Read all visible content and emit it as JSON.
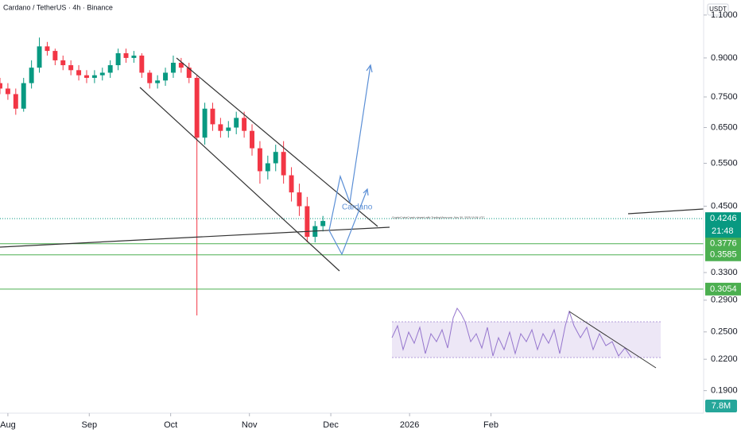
{
  "chart_data": {
    "type": "candlestick",
    "title": "Cardano / TetherUS · 4h · Binance",
    "currency": "USDT",
    "x": [
      -3,
      0,
      3,
      6,
      9,
      12,
      15,
      18,
      21,
      24,
      27,
      30,
      33,
      36,
      39,
      42,
      45,
      48,
      51,
      54,
      57,
      60,
      63,
      66,
      69,
      72,
      75,
      78,
      81,
      84,
      87,
      90,
      93,
      96,
      99,
      102,
      105,
      108,
      111,
      114,
      117,
      120
    ],
    "open": [
      0.8,
      0.78,
      0.76,
      0.71,
      0.8,
      0.86,
      0.95,
      0.93,
      0.89,
      0.87,
      0.85,
      0.83,
      0.82,
      0.83,
      0.84,
      0.87,
      0.92,
      0.9,
      0.91,
      0.84,
      0.8,
      0.81,
      0.84,
      0.88,
      0.86,
      0.82,
      0.62,
      0.71,
      0.66,
      0.64,
      0.65,
      0.68,
      0.64,
      0.59,
      0.53,
      0.55,
      0.58,
      0.52,
      0.48,
      0.45,
      0.39,
      0.41
    ],
    "high": [
      0.82,
      0.8,
      0.78,
      0.82,
      0.89,
      0.99,
      0.97,
      0.94,
      0.91,
      0.89,
      0.87,
      0.85,
      0.85,
      0.86,
      0.89,
      0.94,
      0.94,
      0.93,
      0.92,
      0.85,
      0.83,
      0.86,
      0.91,
      0.9,
      0.88,
      0.83,
      0.73,
      0.73,
      0.68,
      0.67,
      0.7,
      0.7,
      0.66,
      0.61,
      0.57,
      0.6,
      0.61,
      0.54,
      0.5,
      0.47,
      0.42,
      0.43
    ],
    "low": [
      0.76,
      0.74,
      0.69,
      0.7,
      0.78,
      0.84,
      0.91,
      0.87,
      0.85,
      0.83,
      0.81,
      0.8,
      0.8,
      0.81,
      0.82,
      0.85,
      0.88,
      0.88,
      0.82,
      0.78,
      0.78,
      0.79,
      0.82,
      0.84,
      0.8,
      0.27,
      0.6,
      0.64,
      0.62,
      0.62,
      0.63,
      0.62,
      0.57,
      0.5,
      0.51,
      0.53,
      0.5,
      0.46,
      0.43,
      0.38,
      0.38,
      0.4
    ],
    "close": [
      0.78,
      0.76,
      0.71,
      0.8,
      0.86,
      0.95,
      0.93,
      0.89,
      0.87,
      0.85,
      0.83,
      0.82,
      0.83,
      0.84,
      0.87,
      0.92,
      0.9,
      0.91,
      0.84,
      0.8,
      0.81,
      0.84,
      0.88,
      0.86,
      0.82,
      0.62,
      0.71,
      0.66,
      0.64,
      0.65,
      0.68,
      0.64,
      0.59,
      0.53,
      0.55,
      0.58,
      0.52,
      0.48,
      0.45,
      0.39,
      0.41,
      0.42
    ],
    "up_color": "#089981",
    "down_color": "#f23645",
    "xlim": [
      -3,
      265
    ],
    "xticks": [
      {
        "value": 0,
        "label": "Aug"
      },
      {
        "value": 31,
        "label": "Sep"
      },
      {
        "value": 62,
        "label": "Oct"
      },
      {
        "value": 92,
        "label": "Nov"
      },
      {
        "value": 123,
        "label": "Dec"
      },
      {
        "value": 153,
        "label": "2026"
      },
      {
        "value": 184,
        "label": "Feb"
      }
    ],
    "ylim": [
      0.171,
      1.18
    ],
    "log_scale": true,
    "yticks": [
      {
        "value": 1.1,
        "label": "1.1000"
      },
      {
        "value": 0.9,
        "label": "0.9000"
      },
      {
        "value": 0.75,
        "label": "0.7500"
      },
      {
        "value": 0.65,
        "label": "0.6500"
      },
      {
        "value": 0.55,
        "label": "0.5500"
      },
      {
        "value": 0.45,
        "label": "0.4500"
      },
      {
        "value": 0.33,
        "label": "0.3300"
      },
      {
        "value": 0.29,
        "label": "0.2900"
      },
      {
        "value": 0.25,
        "label": "0.2500"
      },
      {
        "value": 0.22,
        "label": "0.2200"
      },
      {
        "value": 0.19,
        "label": "0.1900"
      }
    ],
    "last_price": 0.4246,
    "countdown": "21:48",
    "levels": [
      0.3776,
      0.3585,
      0.3054
    ],
    "level_color": "#4caf50",
    "volume_label": "7.8M",
    "annotations": [
      "Cardano",
      "CryptoCoinsCoach viewed with TradingView.com, Nov 30, 2025 19:34 UTC"
    ]
  }
}
